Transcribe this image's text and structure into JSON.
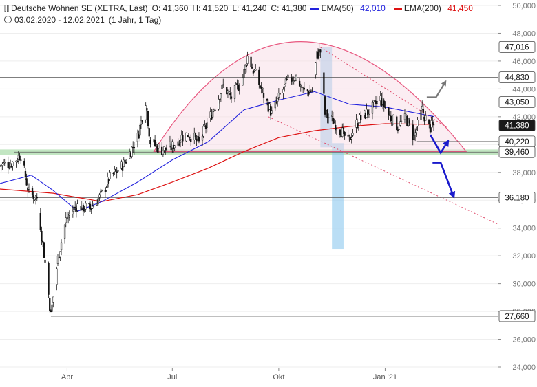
{
  "header": {
    "instrument": "Deutsche Wohnen SE (XETRA, Last)",
    "open": "O: 41,360",
    "high": "H: 41,520",
    "low": "L: 41,240",
    "close": "C: 41,380",
    "ema50_label": "EMA(50)",
    "ema50_value": "42,010",
    "ema200_label": "EMA(200)",
    "ema200_value": "41,450",
    "date_range": "03.02.2020 - 12.02.2021",
    "interval": "(1 Jahr, 1 Tag)",
    "ema50_color": "#2222dd",
    "ema200_color": "#dd1111"
  },
  "chart_data": {
    "type": "candlestick",
    "ylim": [
      24000,
      50000
    ],
    "y_ticks": [
      {
        "value": 24000,
        "label": "24,000"
      },
      {
        "value": 26000,
        "label": "26,000"
      },
      {
        "value": 28000,
        "label": "28,000"
      },
      {
        "value": 30000,
        "label": "30,000"
      },
      {
        "value": 32000,
        "label": "32,000"
      },
      {
        "value": 34000,
        "label": "34,000"
      },
      {
        "value": 36000,
        "label": "36,000"
      },
      {
        "value": 38000,
        "label": "38,000"
      },
      {
        "value": 40000,
        "label": "40,000"
      },
      {
        "value": 42000,
        "label": "42,000"
      },
      {
        "value": 44000,
        "label": "44,000"
      },
      {
        "value": 46000,
        "label": "46,000"
      },
      {
        "value": 48000,
        "label": "48,000"
      },
      {
        "value": 50000,
        "label": "50,000"
      }
    ],
    "x_range": [
      "2020-02-03",
      "2021-02-12"
    ],
    "x_ticks": [
      {
        "date": "2020-04-01",
        "label": "Apr"
      },
      {
        "date": "2020-07-01",
        "label": "Jul"
      },
      {
        "date": "2020-10-01",
        "label": "Okt"
      },
      {
        "date": "2021-01-01",
        "label": "Jan '21"
      }
    ],
    "price_path": [
      {
        "date": "2020-02-03",
        "value": 38500
      },
      {
        "date": "2020-02-14",
        "value": 38700
      },
      {
        "date": "2020-02-21",
        "value": 39300
      },
      {
        "date": "2020-02-28",
        "value": 36500
      },
      {
        "date": "2020-03-06",
        "value": 36200
      },
      {
        "date": "2020-03-13",
        "value": 31500
      },
      {
        "date": "2020-03-18",
        "value": 27700
      },
      {
        "date": "2020-03-24",
        "value": 31800
      },
      {
        "date": "2020-03-31",
        "value": 34600
      },
      {
        "date": "2020-04-09",
        "value": 35600
      },
      {
        "date": "2020-04-21",
        "value": 35400
      },
      {
        "date": "2020-04-30",
        "value": 36300
      },
      {
        "date": "2020-05-08",
        "value": 37600
      },
      {
        "date": "2020-05-20",
        "value": 38600
      },
      {
        "date": "2020-06-01",
        "value": 40500
      },
      {
        "date": "2020-06-08",
        "value": 43200
      },
      {
        "date": "2020-06-12",
        "value": 40200
      },
      {
        "date": "2020-06-22",
        "value": 39600
      },
      {
        "date": "2020-06-30",
        "value": 39800
      },
      {
        "date": "2020-07-08",
        "value": 40500
      },
      {
        "date": "2020-07-15",
        "value": 40800
      },
      {
        "date": "2020-07-24",
        "value": 40100
      },
      {
        "date": "2020-07-31",
        "value": 41500
      },
      {
        "date": "2020-08-07",
        "value": 42800
      },
      {
        "date": "2020-08-14",
        "value": 44200
      },
      {
        "date": "2020-08-21",
        "value": 43400
      },
      {
        "date": "2020-08-31",
        "value": 44800
      },
      {
        "date": "2020-09-04",
        "value": 46300
      },
      {
        "date": "2020-09-10",
        "value": 45200
      },
      {
        "date": "2020-09-18",
        "value": 43600
      },
      {
        "date": "2020-09-25",
        "value": 42200
      },
      {
        "date": "2020-10-02",
        "value": 43500
      },
      {
        "date": "2020-10-09",
        "value": 44600
      },
      {
        "date": "2020-10-16",
        "value": 44900
      },
      {
        "date": "2020-10-23",
        "value": 43800
      },
      {
        "date": "2020-10-30",
        "value": 43900
      },
      {
        "date": "2020-11-03",
        "value": 46400
      },
      {
        "date": "2020-11-06",
        "value": 46700
      },
      {
        "date": "2020-11-10",
        "value": 42200
      },
      {
        "date": "2020-11-17",
        "value": 41700
      },
      {
        "date": "2020-11-24",
        "value": 41000
      },
      {
        "date": "2020-11-30",
        "value": 40200
      },
      {
        "date": "2020-12-07",
        "value": 41500
      },
      {
        "date": "2020-12-14",
        "value": 42100
      },
      {
        "date": "2020-12-21",
        "value": 42600
      },
      {
        "date": "2020-12-28",
        "value": 43300
      },
      {
        "date": "2021-01-05",
        "value": 42000
      },
      {
        "date": "2021-01-12",
        "value": 41300
      },
      {
        "date": "2021-01-19",
        "value": 41900
      },
      {
        "date": "2021-01-26",
        "value": 40500
      },
      {
        "date": "2021-02-02",
        "value": 42500
      },
      {
        "date": "2021-02-08",
        "value": 41200
      },
      {
        "date": "2021-02-12",
        "value": 41380
      }
    ],
    "ema50_path": [
      {
        "date": "2020-02-03",
        "value": 37200
      },
      {
        "date": "2020-03-01",
        "value": 37800
      },
      {
        "date": "2020-03-20",
        "value": 36700
      },
      {
        "date": "2020-04-10",
        "value": 35200
      },
      {
        "date": "2020-05-01",
        "value": 35900
      },
      {
        "date": "2020-06-01",
        "value": 37300
      },
      {
        "date": "2020-07-01",
        "value": 38900
      },
      {
        "date": "2020-08-01",
        "value": 40200
      },
      {
        "date": "2020-09-01",
        "value": 42500
      },
      {
        "date": "2020-10-01",
        "value": 43200
      },
      {
        "date": "2020-11-01",
        "value": 43800
      },
      {
        "date": "2020-12-01",
        "value": 42900
      },
      {
        "date": "2021-01-01",
        "value": 42700
      },
      {
        "date": "2021-02-12",
        "value": 42010
      }
    ],
    "ema200_path": [
      {
        "date": "2020-02-03",
        "value": 36800
      },
      {
        "date": "2020-03-20",
        "value": 36500
      },
      {
        "date": "2020-05-01",
        "value": 35900
      },
      {
        "date": "2020-06-01",
        "value": 36400
      },
      {
        "date": "2020-07-01",
        "value": 37300
      },
      {
        "date": "2020-08-01",
        "value": 38300
      },
      {
        "date": "2020-09-01",
        "value": 39500
      },
      {
        "date": "2020-10-01",
        "value": 40500
      },
      {
        "date": "2020-11-01",
        "value": 41000
      },
      {
        "date": "2020-12-01",
        "value": 41300
      },
      {
        "date": "2021-01-01",
        "value": 41500
      },
      {
        "date": "2021-02-12",
        "value": 41450
      }
    ],
    "price_labels": [
      {
        "value": 47016,
        "label": "47,016",
        "kind": "level",
        "line_from": "2020-11-06"
      },
      {
        "value": 44830,
        "label": "44,830",
        "kind": "level",
        "line_from": "2020-02-03"
      },
      {
        "value": 43050,
        "label": "43,050",
        "kind": "level",
        "line_from": "2021-02-04"
      },
      {
        "value": 41380,
        "label": "41,380",
        "kind": "current",
        "line_from": null
      },
      {
        "value": 40220,
        "label": "40,220",
        "kind": "level",
        "line_from": "2021-01-28"
      },
      {
        "value": 39460,
        "label": "39,460",
        "kind": "level",
        "line_from": "2020-02-15"
      },
      {
        "value": 36180,
        "label": "36,180",
        "kind": "level",
        "line_from": "2020-02-03"
      },
      {
        "value": 27660,
        "label": "27,660",
        "kind": "level",
        "line_from": "2020-03-18"
      }
    ],
    "support_zone": {
      "from": 39250,
      "to": 39650,
      "color": "#8fd18f"
    },
    "highlight_boxes": [
      {
        "date_from": "2020-11-06",
        "date_to": "2020-11-16",
        "y_from": 39800,
        "y_to": 47000
      },
      {
        "date_from": "2020-11-16",
        "date_to": "2020-11-26",
        "y_from": 32500,
        "y_to": 40100
      }
    ],
    "rounding_top_arc": {
      "start": {
        "date": "2020-06-15",
        "value": 39500
      },
      "peak": {
        "date": "2020-10-20",
        "value": 47400
      },
      "end": {
        "date": "2021-03-12",
        "value": 39500
      }
    },
    "trend_channel": {
      "upper": {
        "from": {
          "date": "2020-11-06",
          "value": 47000
        },
        "to": {
          "date": "2021-02-24",
          "value": 41200
        }
      },
      "lower": {
        "from": {
          "date": "2020-09-22",
          "value": 42000
        },
        "to": {
          "date": "2021-04-08",
          "value": 34300
        }
      }
    },
    "scenario_arrows": [
      {
        "color": "gray",
        "path": [
          {
            "date": "2021-02-06",
            "value": 43400
          },
          {
            "date": "2021-02-14",
            "value": 43400
          },
          {
            "date": "2021-02-22",
            "value": 44500
          }
        ]
      },
      {
        "color": "blue",
        "path": [
          {
            "date": "2021-02-09",
            "value": 40700
          },
          {
            "date": "2021-02-18",
            "value": 39400
          },
          {
            "date": "2021-02-24",
            "value": 40200
          }
        ]
      },
      {
        "color": "blue",
        "path": [
          {
            "date": "2021-02-11",
            "value": 38700
          },
          {
            "date": "2021-02-18",
            "value": 38700
          },
          {
            "date": "2021-03-01",
            "value": 36300
          }
        ]
      }
    ]
  }
}
